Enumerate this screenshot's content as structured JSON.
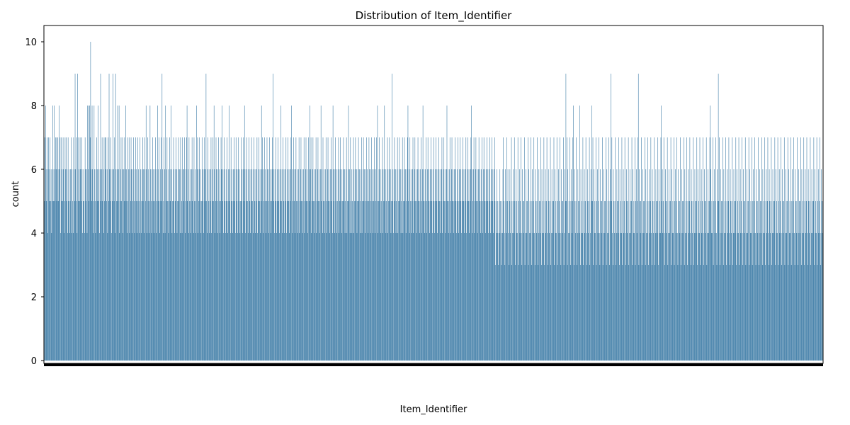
{
  "chart_data": {
    "type": "bar",
    "title": "Distribution of Item_Identifier",
    "xlabel": "Item_Identifier",
    "ylabel": "count",
    "ylim": [
      0,
      10.5
    ],
    "yticks": [
      "0",
      "2",
      "4",
      "6",
      "8",
      "10"
    ],
    "category_count": 1559,
    "grid": false,
    "legend": "none",
    "color": "#3274a1",
    "values": [
      7,
      5,
      7,
      8,
      6,
      5,
      7,
      4,
      6,
      7,
      5,
      6,
      7,
      5,
      6,
      4,
      5,
      8,
      6,
      5,
      8,
      5,
      6,
      7,
      6,
      7,
      5,
      7,
      6,
      5,
      8,
      6,
      7,
      4,
      7,
      5,
      6,
      5,
      7,
      6,
      4,
      5,
      7,
      6,
      7,
      5,
      6,
      4,
      7,
      5,
      6,
      4,
      5,
      6,
      7,
      4,
      6,
      5,
      4,
      7,
      6,
      5,
      9,
      6,
      5,
      7,
      4,
      9,
      5,
      7,
      6,
      5,
      7,
      6,
      5,
      7,
      6,
      4,
      5,
      6,
      5,
      4,
      7,
      6,
      5,
      6,
      4,
      8,
      6,
      8,
      5,
      8,
      7,
      10,
      6,
      5,
      8,
      6,
      4,
      5,
      8,
      6,
      5,
      4,
      6,
      7,
      5,
      6,
      8,
      5,
      6,
      4,
      6,
      9,
      5,
      6,
      7,
      5,
      6,
      4,
      7,
      5,
      7,
      6,
      7,
      5,
      6,
      4,
      7,
      5,
      9,
      6,
      5,
      7,
      6,
      4,
      5,
      6,
      9,
      6,
      5,
      7,
      4,
      9,
      6,
      5,
      6,
      8,
      5,
      6,
      8,
      4,
      5,
      6,
      7,
      5,
      6,
      7,
      4,
      6,
      5,
      7,
      6,
      8,
      5,
      6,
      4,
      7,
      5,
      6,
      7,
      4,
      6,
      5,
      7,
      6,
      4,
      5,
      6,
      7,
      5,
      4,
      6,
      7,
      5,
      6,
      4,
      7,
      5,
      6,
      4,
      5,
      7,
      6,
      4,
      5,
      6,
      7,
      5,
      6,
      4,
      7,
      6,
      5,
      8,
      6,
      4,
      7,
      5,
      6,
      4,
      5,
      8,
      6,
      5,
      4,
      6,
      7,
      5,
      6,
      4,
      5,
      6,
      7,
      4,
      5,
      6,
      8,
      5,
      6,
      7,
      4,
      5,
      6,
      7,
      5,
      9,
      6,
      4,
      5,
      7,
      6,
      4,
      8,
      5,
      6,
      7,
      5,
      6,
      4,
      5,
      7,
      6,
      5,
      8,
      6,
      4,
      5,
      6,
      7,
      5,
      4,
      6,
      5,
      7,
      6,
      4,
      5,
      6,
      7,
      5,
      6,
      4,
      7,
      6,
      5,
      4,
      7,
      6,
      5,
      6,
      7,
      4,
      5,
      6,
      7,
      8,
      5,
      6,
      4,
      7,
      5,
      6,
      4,
      5,
      6,
      7,
      5,
      6,
      4,
      7,
      5,
      6,
      4,
      5,
      8,
      6,
      7,
      4,
      5,
      6,
      7,
      5,
      6,
      4,
      5,
      7,
      6,
      5,
      4,
      6,
      7,
      5,
      6,
      9,
      5,
      4,
      6,
      7,
      5,
      6,
      4,
      5,
      6,
      7,
      4,
      5,
      6,
      7,
      5,
      8,
      6,
      4,
      5,
      7,
      6,
      5,
      4,
      6,
      7,
      5,
      6,
      4,
      5,
      7,
      6,
      8,
      5,
      6,
      4,
      7,
      5,
      6,
      4,
      5,
      6,
      7,
      4,
      5,
      6,
      8,
      5,
      6,
      4,
      7,
      5,
      6,
      4,
      5,
      6,
      7,
      5,
      6,
      4,
      7,
      6,
      5,
      4,
      6,
      7,
      5,
      6,
      4,
      5,
      7,
      6,
      5,
      4,
      6,
      7,
      5,
      8,
      6,
      4,
      5,
      7,
      6,
      5,
      4,
      6,
      7,
      5,
      6,
      4,
      5,
      7,
      6,
      5,
      4,
      6,
      7,
      5,
      6,
      4,
      5,
      6,
      7,
      4,
      5,
      6,
      7,
      5,
      6,
      4,
      5,
      8,
      6,
      7,
      4,
      5,
      6,
      7,
      5,
      6,
      4,
      5,
      7,
      6,
      5,
      4,
      6,
      7,
      5,
      6,
      4,
      5,
      6,
      7,
      9,
      5,
      6,
      4,
      5,
      6,
      7,
      4,
      5,
      6,
      7,
      5,
      6,
      4,
      5,
      6,
      8,
      5,
      6,
      4,
      7,
      5,
      6,
      4,
      5,
      6,
      7,
      4,
      5,
      6,
      7,
      5,
      6,
      4,
      5,
      6,
      7,
      8,
      6,
      4,
      5,
      7,
      6,
      5,
      4,
      6,
      7,
      5,
      6,
      4,
      5,
      6,
      7,
      4,
      5,
      6,
      7,
      5,
      6,
      4,
      5,
      6,
      7,
      4,
      5,
      6,
      7,
      5,
      6,
      4,
      5,
      7,
      6,
      5,
      8,
      6,
      7,
      4,
      5,
      6,
      7,
      5,
      6,
      4,
      5,
      6,
      7,
      4,
      5,
      6,
      7,
      5,
      6,
      4,
      5,
      6,
      8,
      5,
      6,
      4,
      7,
      5,
      6,
      4,
      5,
      6,
      7,
      4,
      5,
      6,
      7,
      5,
      6,
      4,
      5,
      6,
      7,
      5,
      6,
      4,
      8,
      6,
      5,
      4,
      6,
      7,
      5,
      6,
      4,
      5,
      6,
      7,
      4,
      5,
      6,
      7,
      5,
      6,
      4,
      5,
      6,
      7,
      5,
      6,
      4,
      5,
      6,
      7,
      4,
      5,
      6,
      8,
      5,
      6,
      4,
      7,
      5,
      6,
      4,
      5,
      6,
      7,
      4,
      5,
      6,
      7,
      5,
      6,
      4,
      5,
      6,
      7,
      5,
      6,
      4,
      5,
      6,
      7,
      4,
      5,
      6,
      7,
      5,
      6,
      4,
      5,
      6,
      7,
      5,
      6,
      4,
      5,
      7,
      6,
      5,
      4,
      6,
      7,
      5,
      6,
      4,
      5,
      6,
      7,
      4,
      5,
      6,
      7,
      5,
      8,
      4,
      5,
      6,
      7,
      5,
      6,
      4,
      5,
      6,
      7,
      4,
      5,
      6,
      8,
      5,
      6,
      4,
      5,
      6,
      7,
      4,
      5,
      6,
      7,
      5,
      6,
      4,
      5,
      9,
      6,
      5,
      4,
      6,
      7,
      5,
      6,
      4,
      5,
      6,
      7,
      4,
      5,
      6,
      7,
      5,
      6,
      4,
      5,
      6,
      7,
      4,
      5,
      6,
      7,
      5,
      6,
      4,
      5,
      6,
      7,
      8,
      5,
      6,
      4,
      7,
      5,
      6,
      4,
      5,
      6,
      7,
      4,
      5,
      6,
      7,
      5,
      6,
      4,
      5,
      6,
      7,
      5,
      6,
      4,
      5,
      6,
      7,
      4,
      5,
      6,
      8,
      5,
      6,
      4,
      5,
      6,
      7,
      4,
      5,
      6,
      7,
      5,
      6,
      4,
      5,
      6,
      7,
      5,
      6,
      4,
      5,
      6,
      7,
      4,
      5,
      6,
      7,
      5,
      6,
      4,
      5,
      6,
      7,
      5,
      6,
      4,
      5,
      6,
      7,
      4,
      5,
      6,
      7,
      5,
      6,
      4,
      5,
      6,
      8,
      5,
      6,
      4,
      5,
      6,
      7,
      4,
      5,
      6,
      7,
      5,
      6,
      4,
      5,
      6,
      7,
      5,
      6,
      4,
      5,
      6,
      7,
      4,
      5,
      6,
      7,
      5,
      6,
      4,
      5,
      6,
      7,
      5,
      6,
      4,
      5,
      6,
      7,
      4,
      5,
      6,
      7,
      5,
      6,
      4,
      5,
      6,
      7,
      8,
      6,
      4,
      5,
      6,
      7,
      4,
      5,
      6,
      7,
      5,
      6,
      4,
      5,
      6,
      7,
      5,
      6,
      4,
      5,
      6,
      7,
      4,
      5,
      6,
      7,
      5,
      6,
      4,
      5,
      6,
      7,
      5,
      6,
      4,
      5,
      6,
      7,
      4,
      5,
      6,
      7,
      5,
      6,
      4,
      5,
      6,
      7,
      3,
      5,
      4,
      6,
      5,
      4,
      3,
      5,
      4,
      6,
      5,
      4,
      3,
      5,
      4,
      6,
      7,
      5,
      4,
      3,
      6,
      5,
      4,
      7,
      5,
      6,
      4,
      3,
      5,
      6,
      4,
      5,
      7,
      3,
      4,
      5,
      6,
      4,
      7,
      5,
      3,
      6,
      4,
      5,
      4,
      7,
      3,
      5,
      6,
      4,
      5,
      7,
      4,
      3,
      6,
      5,
      4,
      5,
      7,
      3,
      4,
      6,
      5,
      4,
      5,
      7,
      3,
      6,
      4,
      5,
      4,
      7,
      3,
      5,
      6,
      4,
      5,
      7,
      4,
      3,
      6,
      5,
      4,
      5,
      7,
      3,
      4,
      6,
      5,
      4,
      5,
      7,
      3,
      6,
      4,
      5,
      4,
      7,
      3,
      5,
      6,
      4,
      5,
      7,
      4,
      3,
      6,
      5,
      4,
      5,
      7,
      3,
      4,
      6,
      5,
      4,
      5,
      7,
      3,
      6,
      4,
      5,
      4,
      7,
      3,
      5,
      6,
      4,
      5,
      7,
      4,
      3,
      6,
      5,
      4,
      5,
      7,
      3,
      4,
      6,
      5,
      9,
      5,
      7,
      3,
      6,
      4,
      5,
      4,
      7,
      3,
      5,
      6,
      4,
      5,
      7,
      8,
      3,
      6,
      5,
      4,
      5,
      7,
      3,
      4,
      6,
      5,
      4,
      5,
      8,
      3,
      6,
      4,
      5,
      4,
      7,
      3,
      5,
      6,
      4,
      5,
      7,
      4,
      3,
      6,
      5,
      4,
      5,
      7,
      3,
      4,
      6,
      5,
      8,
      5,
      7,
      3,
      6,
      4,
      5,
      4,
      7,
      3,
      5,
      6,
      4,
      5,
      7,
      4,
      3,
      6,
      5,
      4,
      5,
      7,
      3,
      4,
      6,
      5,
      4,
      5,
      7,
      3,
      6,
      4,
      5,
      4,
      7,
      3,
      5,
      6,
      9,
      5,
      7,
      4,
      3,
      6,
      5,
      4,
      5,
      7,
      3,
      4,
      6,
      5,
      4,
      5,
      7,
      3,
      6,
      4,
      5,
      4,
      7,
      3,
      5,
      6,
      4,
      5,
      7,
      4,
      3,
      6,
      5,
      4,
      5,
      7,
      3,
      4,
      6,
      5,
      4,
      5,
      7,
      3,
      6,
      4,
      5,
      4,
      7,
      3,
      5,
      6,
      4,
      5,
      7,
      9,
      3,
      6,
      5,
      4,
      5,
      7,
      3,
      4,
      6,
      5,
      4,
      5,
      7,
      3,
      6,
      4,
      5,
      4,
      7,
      3,
      5,
      6,
      4,
      5,
      7,
      4,
      3,
      6,
      5,
      4,
      5,
      7,
      3,
      4,
      6,
      5,
      4,
      5,
      7,
      3,
      6,
      4,
      5,
      4,
      7,
      8,
      5,
      6,
      4,
      5,
      7,
      4,
      3,
      6,
      5,
      4,
      5,
      7,
      3,
      4,
      6,
      5,
      4,
      5,
      7,
      3,
      6,
      4,
      5,
      4,
      7,
      3,
      5,
      6,
      4,
      5,
      7,
      4,
      3,
      6,
      5,
      4,
      5,
      7,
      3,
      4,
      6,
      5,
      4,
      5,
      7,
      3,
      6,
      4,
      5,
      4,
      7,
      3,
      5,
      6,
      4,
      5,
      7,
      4,
      3,
      6,
      5,
      4,
      5,
      7,
      3,
      4,
      6,
      5,
      4,
      5,
      7,
      3,
      6,
      4,
      5,
      4,
      7,
      3,
      5,
      6,
      4,
      5,
      7,
      4,
      3,
      6,
      5,
      4,
      5,
      7,
      3,
      4,
      6,
      5,
      4,
      5,
      7,
      8,
      6,
      4,
      5,
      4,
      7,
      3,
      5,
      6,
      4,
      5,
      7,
      4,
      3,
      6,
      5,
      9,
      5,
      7,
      3,
      4,
      6,
      5,
      4,
      5,
      7,
      3,
      6,
      4,
      5,
      4,
      7,
      3,
      5,
      6,
      4,
      5,
      7,
      4,
      3,
      6,
      5,
      4,
      5,
      7,
      3,
      4,
      6,
      5,
      4,
      5,
      7,
      3,
      6,
      4,
      5,
      4,
      7,
      3,
      5,
      6,
      4,
      5,
      7,
      4,
      3,
      6,
      5,
      4,
      5,
      7,
      3,
      4,
      6,
      5,
      4,
      5,
      7,
      3,
      6,
      4,
      5,
      4,
      7,
      3,
      5,
      6,
      4,
      5,
      7,
      4,
      3,
      6,
      5,
      4,
      5,
      7,
      3,
      4,
      6,
      5,
      4,
      5,
      7,
      3,
      6,
      4,
      5,
      4,
      7,
      3,
      5,
      6,
      4,
      5,
      7,
      4,
      3,
      6,
      5,
      4,
      5,
      7,
      3,
      4,
      6,
      5,
      4,
      5,
      7,
      3,
      6,
      4,
      5,
      4,
      7,
      3,
      5,
      6,
      4,
      5,
      7,
      4,
      3,
      6,
      5,
      4,
      5,
      7,
      3,
      4,
      6,
      5,
      4,
      5,
      7,
      3,
      6,
      4,
      5,
      4,
      7,
      3,
      5,
      6,
      4,
      5,
      7,
      4,
      3,
      6,
      5,
      4,
      5,
      7,
      3,
      4,
      6,
      5,
      4,
      5,
      7,
      3,
      6,
      4,
      5,
      4,
      7,
      3,
      5,
      6,
      4,
      5,
      7,
      4,
      3,
      6,
      5,
      4,
      5,
      7,
      3,
      4,
      6,
      5,
      4,
      5,
      7,
      3,
      6,
      4,
      5,
      4,
      7,
      3,
      5,
      6,
      4,
      5,
      7,
      4,
      3,
      6,
      5,
      4,
      5,
      7,
      3,
      4,
      6,
      5,
      4,
      5,
      7,
      3,
      6,
      4,
      5,
      4,
      7,
      3,
      5,
      6,
      4,
      5,
      7,
      4,
      3,
      6,
      5,
      4,
      5,
      7,
      3,
      4,
      6,
      5,
      4,
      5,
      4,
      3,
      2,
      4,
      3,
      5,
      2,
      3
    ]
  }
}
